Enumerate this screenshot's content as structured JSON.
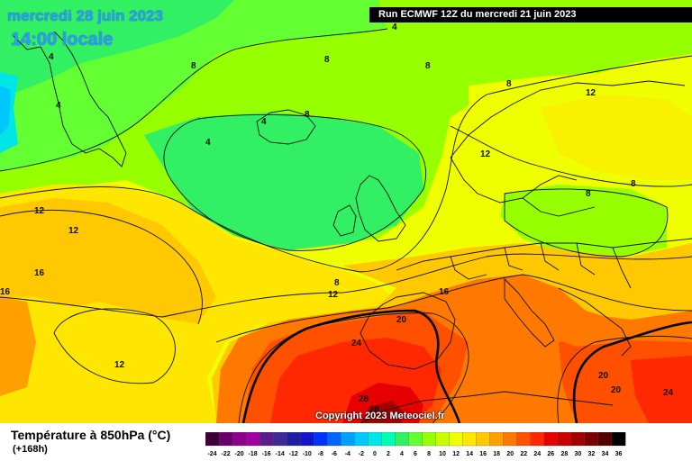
{
  "header": {
    "date_title": "mercredi 28 juin 2023",
    "time_title": "14:00 locale",
    "run_info": "Run ECMWF 12Z du mercredi 21 juin 2023"
  },
  "footer": {
    "copyright": "Copyright 2023 Meteociel.fr",
    "variable_title": "Température à 850hPa (°C)",
    "lead_time": "(+168h)"
  },
  "legend": {
    "levels": [
      "-24",
      "-22",
      "-20",
      "-18",
      "-16",
      "-14",
      "-12",
      "-10",
      "-8",
      "-6",
      "-4",
      "-2",
      "0",
      "2",
      "4",
      "6",
      "8",
      "10",
      "12",
      "14",
      "16",
      "18",
      "20",
      "22",
      "24",
      "26",
      "28",
      "30",
      "32",
      "34",
      "36"
    ],
    "colors": [
      "#3c0037",
      "#690069",
      "#8c008c",
      "#a000a0",
      "#5c1a8c",
      "#3c2896",
      "#1e1ea0",
      "#1414c8",
      "#0032ff",
      "#0064ff",
      "#00a0ff",
      "#00c8ff",
      "#00e6e6",
      "#00ffb4",
      "#32f064",
      "#64ff32",
      "#96ff00",
      "#c8ff00",
      "#f0ff00",
      "#ffe600",
      "#ffc800",
      "#ffa000",
      "#ff7800",
      "#ff5000",
      "#ff2800",
      "#e60000",
      "#c80000",
      "#a00000",
      "#780000",
      "#500000",
      "#000000"
    ]
  },
  "contour_labels": [
    {
      "text": "4"
    },
    {
      "text": "4"
    },
    {
      "text": "8"
    },
    {
      "text": "8"
    },
    {
      "text": "8"
    },
    {
      "text": "8"
    },
    {
      "text": "12"
    },
    {
      "text": "4"
    },
    {
      "text": "8"
    },
    {
      "text": "4"
    },
    {
      "text": "4"
    },
    {
      "text": "12"
    },
    {
      "text": "8"
    },
    {
      "text": "8"
    },
    {
      "text": "12"
    },
    {
      "text": "12"
    },
    {
      "text": "16"
    },
    {
      "text": "16"
    },
    {
      "text": "8"
    },
    {
      "text": "12"
    },
    {
      "text": "16"
    },
    {
      "text": "20"
    },
    {
      "text": "24"
    },
    {
      "text": "12"
    },
    {
      "text": "28"
    },
    {
      "text": "28"
    },
    {
      "text": "20"
    },
    {
      "text": "20"
    },
    {
      "text": "24"
    }
  ]
}
